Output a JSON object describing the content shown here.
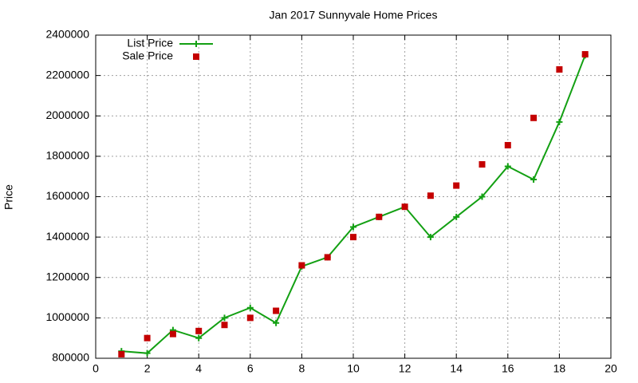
{
  "chart_data": {
    "type": "line",
    "title": "Jan 2017 Sunnyvale Home Prices",
    "y_label": "Price",
    "x": [
      1,
      2,
      3,
      4,
      5,
      6,
      7,
      8,
      9,
      10,
      11,
      12,
      13,
      14,
      15,
      16,
      17,
      18,
      19
    ],
    "series": [
      {
        "name": "List Price",
        "color": "#13a013",
        "style": "linespoints",
        "values": [
          835000,
          825000,
          940000,
          900000,
          1000000,
          1050000,
          975000,
          1255000,
          1300000,
          1450000,
          1500000,
          1550000,
          1400000,
          1500000,
          1600000,
          1750000,
          1685000,
          1970000,
          2300000
        ]
      },
      {
        "name": "Sale Price",
        "color": "#c40000",
        "style": "points",
        "values": [
          820000,
          900000,
          920000,
          935000,
          965000,
          1000000,
          1035000,
          1260000,
          1300000,
          1400000,
          1500000,
          1550000,
          1605000,
          1655000,
          1760000,
          1855000,
          1990000,
          2230000,
          2305000
        ]
      }
    ],
    "xlim": [
      0,
      20
    ],
    "xticks": [
      0,
      2,
      4,
      6,
      8,
      10,
      12,
      14,
      16,
      18,
      20
    ],
    "ylim": [
      800000,
      2400000
    ],
    "yticks": [
      800000,
      1000000,
      1200000,
      1400000,
      1600000,
      1800000,
      2000000,
      2200000,
      2400000
    ],
    "grid": true,
    "legend": "top-left"
  }
}
